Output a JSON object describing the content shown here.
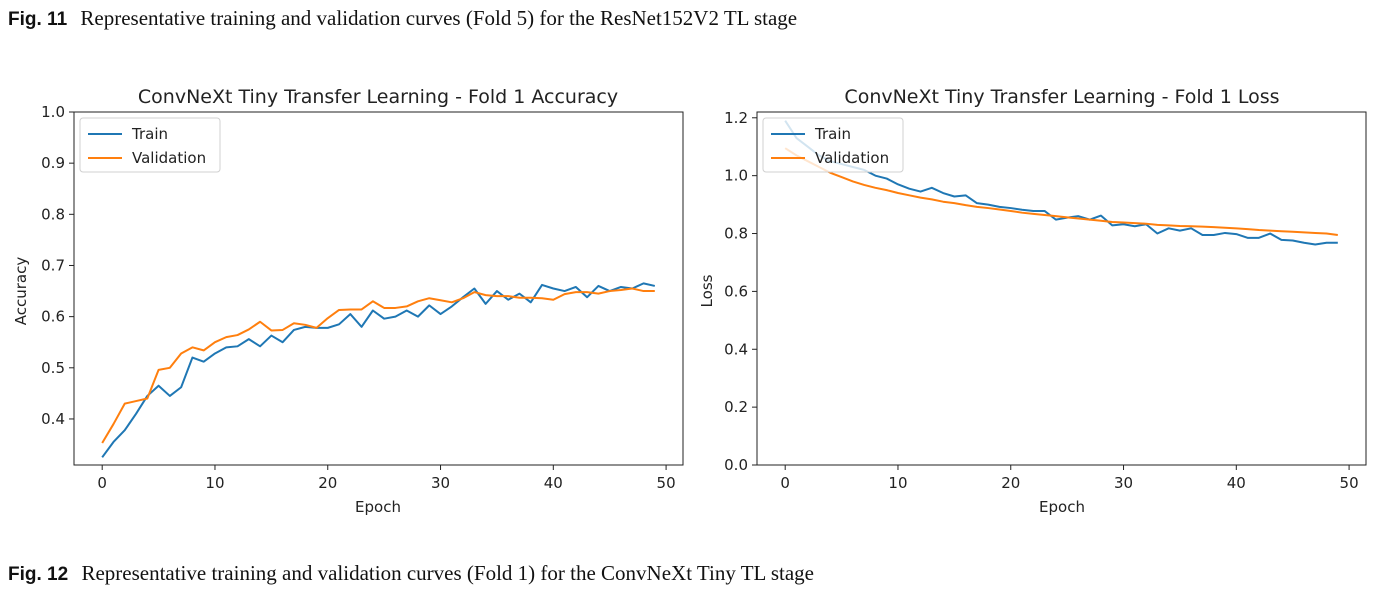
{
  "captions": {
    "top": {
      "label": "Fig. 11",
      "text": "Representative training and validation curves (Fold 5) for the ResNet152V2 TL stage"
    },
    "bottom": {
      "label": "Fig. 12",
      "text": "Representative training and validation curves (Fold 1) for the ConvNeXt Tiny TL stage"
    }
  },
  "colors": {
    "train": "#1f77b4",
    "validation": "#ff7f0e"
  },
  "chart_data": [
    {
      "type": "line",
      "title": "ConvNeXt Tiny Transfer Learning - Fold 1 Accuracy",
      "xlabel": "Epoch",
      "ylabel": "Accuracy",
      "xlim": [
        -2.5,
        51.5
      ],
      "ylim": [
        0.31,
        1.0
      ],
      "xticks": [
        "0",
        "10",
        "20",
        "30",
        "40",
        "50"
      ],
      "yticks": [
        "0.4",
        "0.5",
        "0.6",
        "0.7",
        "0.8",
        "0.9",
        "1.0"
      ],
      "legend_position": "top-left",
      "x": [
        0,
        1,
        2,
        3,
        4,
        5,
        6,
        7,
        8,
        9,
        10,
        11,
        12,
        13,
        14,
        15,
        16,
        17,
        18,
        19,
        20,
        21,
        22,
        23,
        24,
        25,
        26,
        27,
        28,
        29,
        30,
        31,
        32,
        33,
        34,
        35,
        36,
        37,
        38,
        39,
        40,
        41,
        42,
        43,
        44,
        45,
        46,
        47,
        48,
        49
      ],
      "series": [
        {
          "name": "Train",
          "values": [
            0.325,
            0.355,
            0.378,
            0.41,
            0.445,
            0.465,
            0.445,
            0.462,
            0.52,
            0.512,
            0.528,
            0.54,
            0.542,
            0.556,
            0.542,
            0.563,
            0.55,
            0.574,
            0.58,
            0.578,
            0.578,
            0.585,
            0.605,
            0.58,
            0.612,
            0.596,
            0.6,
            0.612,
            0.6,
            0.622,
            0.605,
            0.62,
            0.638,
            0.655,
            0.625,
            0.65,
            0.633,
            0.645,
            0.628,
            0.662,
            0.655,
            0.65,
            0.658,
            0.638,
            0.66,
            0.65,
            0.658,
            0.655,
            0.665,
            0.66
          ]
        },
        {
          "name": "Validation",
          "values": [
            0.353,
            0.39,
            0.43,
            0.435,
            0.44,
            0.496,
            0.5,
            0.528,
            0.54,
            0.534,
            0.55,
            0.56,
            0.564,
            0.575,
            0.59,
            0.573,
            0.574,
            0.587,
            0.584,
            0.578,
            0.597,
            0.613,
            0.614,
            0.614,
            0.63,
            0.617,
            0.617,
            0.62,
            0.63,
            0.636,
            0.632,
            0.628,
            0.636,
            0.648,
            0.642,
            0.64,
            0.64,
            0.637,
            0.637,
            0.636,
            0.633,
            0.644,
            0.648,
            0.648,
            0.645,
            0.65,
            0.652,
            0.655,
            0.65,
            0.65
          ]
        }
      ]
    },
    {
      "type": "line",
      "title": "ConvNeXt Tiny Transfer Learning - Fold 1 Loss",
      "xlabel": "Epoch",
      "ylabel": "Loss",
      "xlim": [
        -2.5,
        51.5
      ],
      "ylim": [
        0.0,
        1.22
      ],
      "xticks": [
        "0",
        "10",
        "20",
        "30",
        "40",
        "50"
      ],
      "yticks": [
        "0.0",
        "0.2",
        "0.4",
        "0.6",
        "0.8",
        "1.0",
        "1.2"
      ],
      "legend_position": "top-left",
      "x": [
        0,
        1,
        2,
        3,
        4,
        5,
        6,
        7,
        8,
        9,
        10,
        11,
        12,
        13,
        14,
        15,
        16,
        17,
        18,
        19,
        20,
        21,
        22,
        23,
        24,
        25,
        26,
        27,
        28,
        29,
        30,
        31,
        32,
        33,
        34,
        35,
        36,
        37,
        38,
        39,
        40,
        41,
        42,
        43,
        44,
        45,
        46,
        47,
        48,
        49
      ],
      "series": [
        {
          "name": "Train",
          "values": [
            1.19,
            1.13,
            1.1,
            1.07,
            1.05,
            1.04,
            1.03,
            1.02,
            1.0,
            0.99,
            0.97,
            0.955,
            0.945,
            0.958,
            0.94,
            0.928,
            0.932,
            0.905,
            0.9,
            0.892,
            0.888,
            0.882,
            0.878,
            0.878,
            0.848,
            0.855,
            0.86,
            0.848,
            0.862,
            0.828,
            0.832,
            0.825,
            0.832,
            0.8,
            0.818,
            0.81,
            0.818,
            0.795,
            0.795,
            0.802,
            0.798,
            0.785,
            0.785,
            0.8,
            0.778,
            0.776,
            0.768,
            0.762,
            0.768,
            0.768
          ]
        },
        {
          "name": "Validation",
          "values": [
            1.095,
            1.07,
            1.05,
            1.03,
            1.01,
            0.995,
            0.98,
            0.968,
            0.958,
            0.95,
            0.94,
            0.932,
            0.924,
            0.918,
            0.91,
            0.905,
            0.898,
            0.892,
            0.888,
            0.883,
            0.878,
            0.872,
            0.868,
            0.864,
            0.86,
            0.856,
            0.852,
            0.848,
            0.844,
            0.84,
            0.838,
            0.836,
            0.834,
            0.83,
            0.828,
            0.826,
            0.825,
            0.824,
            0.822,
            0.82,
            0.818,
            0.815,
            0.812,
            0.81,
            0.808,
            0.806,
            0.804,
            0.802,
            0.8,
            0.795
          ]
        }
      ]
    }
  ]
}
